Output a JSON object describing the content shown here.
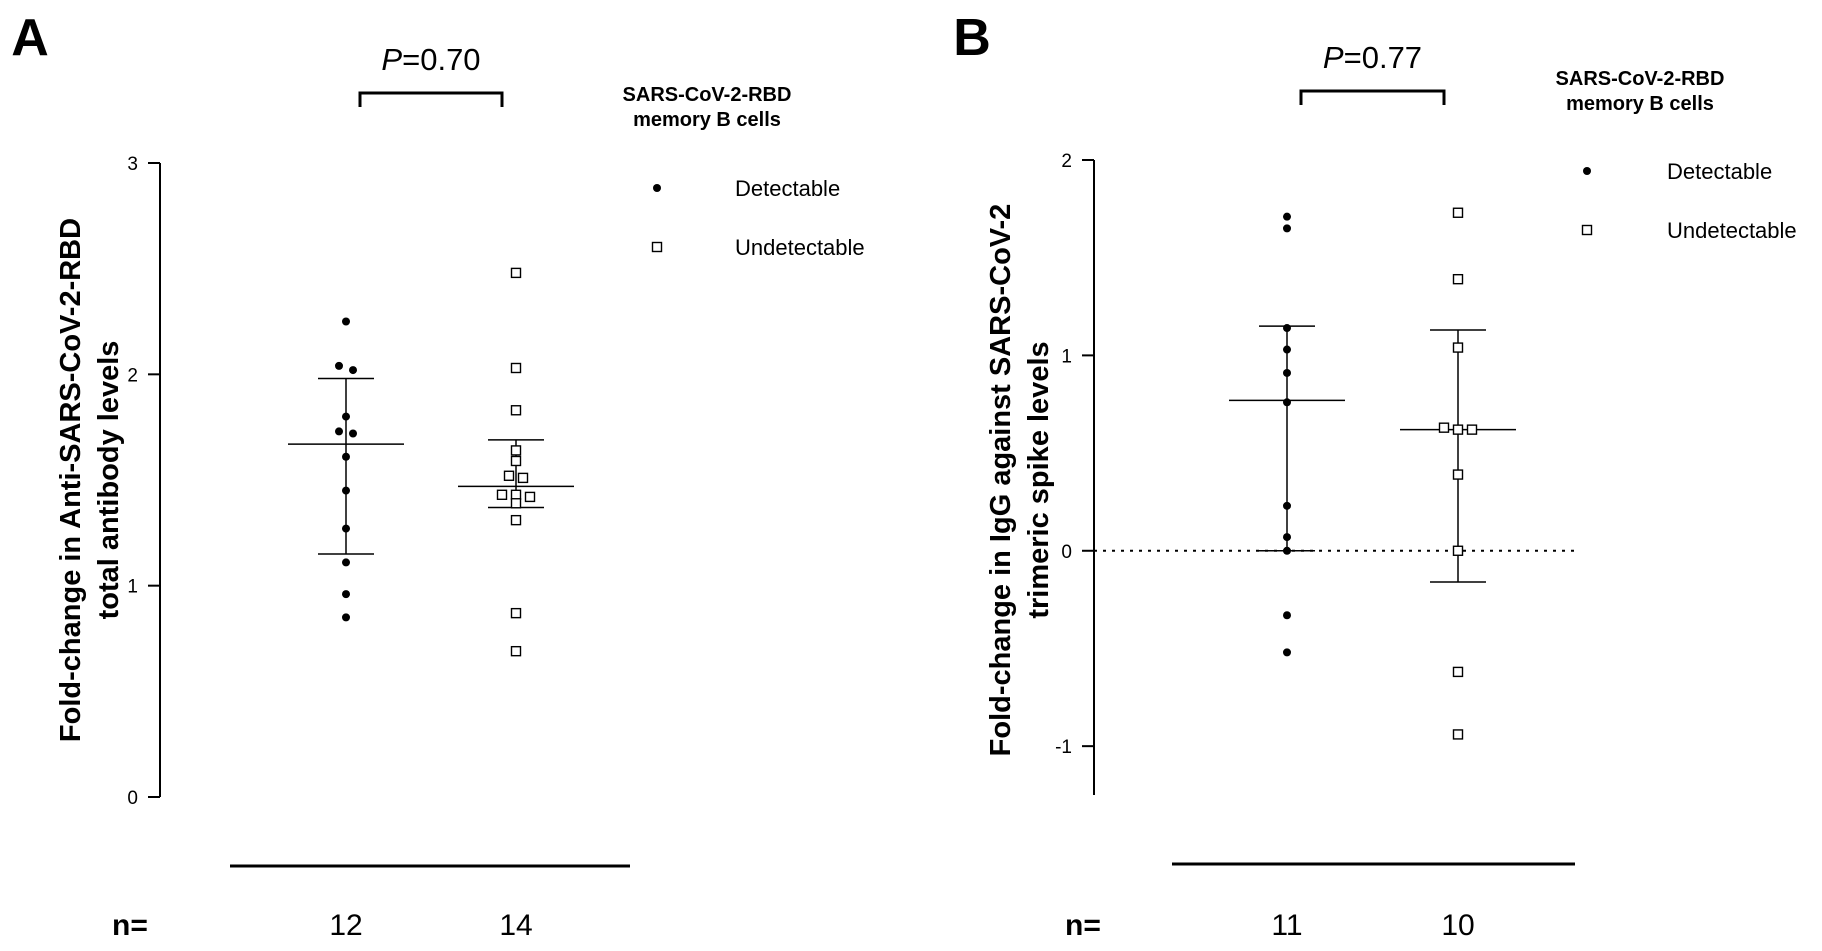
{
  "chart_data": [
    {
      "type": "scatter",
      "panel_label": "A",
      "ylabel_line1": "Fold-change in Anti-SARS-CoV-2-RBD",
      "ylabel_line2": "total antibody levels",
      "ylim": [
        0,
        3
      ],
      "yticks": [
        0,
        1,
        2,
        3
      ],
      "ytick_labels": [
        "0",
        "1",
        "2",
        "3"
      ],
      "zero_line": false,
      "p_prefix": "P",
      "p_suffix": "=0.70",
      "n_label": "n=",
      "legend_title_line1": "SARS-CoV-2-RBD",
      "legend_title_line2": "memory B cells",
      "legend_position": "top-right",
      "series": [
        {
          "name": "Detectable",
          "marker": "filled-circle",
          "n_text": "12",
          "mean": 1.67,
          "sd_upper": 1.98,
          "sd_lower": 1.15,
          "values": [
            2.25,
            2.04,
            2.02,
            1.8,
            1.73,
            1.72,
            1.61,
            1.45,
            1.27,
            1.11,
            0.96,
            0.85
          ]
        },
        {
          "name": "Undetectable",
          "marker": "open-square",
          "n_text": "14",
          "mean": 1.47,
          "sd_upper": 1.69,
          "sd_lower": 1.37,
          "values": [
            2.48,
            2.03,
            1.83,
            1.64,
            1.59,
            1.52,
            1.51,
            1.43,
            1.43,
            1.42,
            1.39,
            1.31,
            0.87,
            0.69
          ]
        }
      ]
    },
    {
      "type": "scatter",
      "panel_label": "B",
      "ylabel_line1": "Fold-change in IgG against SARS-CoV-2",
      "ylabel_line2": "trimeric spike levels",
      "ylim": [
        -1.25,
        2
      ],
      "yticks": [
        -1,
        0,
        1,
        2
      ],
      "ytick_labels": [
        "-1",
        "0",
        "1",
        "2"
      ],
      "zero_line": true,
      "p_prefix": "P",
      "p_suffix": "=0.77",
      "n_label": "n=",
      "legend_title_line1": "SARS-CoV-2-RBD",
      "legend_title_line2": "memory B cells",
      "legend_position": "top-right",
      "series": [
        {
          "name": "Detectable",
          "marker": "filled-circle",
          "n_text": "11",
          "mean": 0.77,
          "sd_upper": 1.15,
          "sd_lower": 0.0,
          "values": [
            1.71,
            1.65,
            1.14,
            1.03,
            0.91,
            0.76,
            0.23,
            0.07,
            0.0,
            -0.33,
            -0.52
          ]
        },
        {
          "name": "Undetectable",
          "marker": "open-square",
          "n_text": "10",
          "mean": 0.62,
          "sd_upper": 1.13,
          "sd_lower": -0.16,
          "values": [
            1.73,
            1.39,
            1.04,
            0.63,
            0.62,
            0.62,
            0.39,
            0.0,
            -0.62,
            -0.94
          ]
        }
      ]
    }
  ]
}
